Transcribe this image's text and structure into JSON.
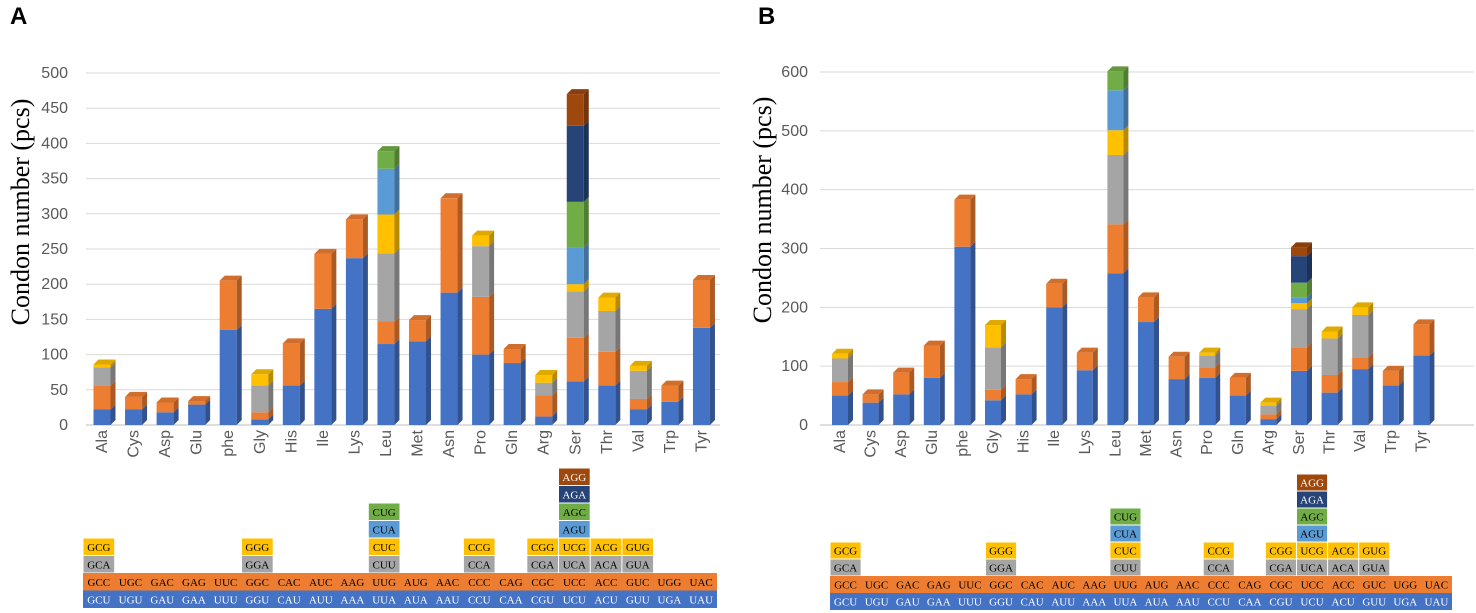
{
  "colors": {
    "blue": "#4472C4",
    "orange": "#ED7D31",
    "gray": "#A5A5A5",
    "yellow": "#FFC000",
    "lightblue": "#5B9BD5",
    "green": "#70AD47",
    "navy": "#264478",
    "brown": "#9E480E"
  },
  "codon_table": {
    "codons": {
      "Ala": [
        "GCU",
        "GCC",
        "GCA",
        "GCG"
      ],
      "Cys": [
        "UGU",
        "UGC"
      ],
      "Asp": [
        "GAU",
        "GAC"
      ],
      "Glu": [
        "GAA",
        "GAG"
      ],
      "phe": [
        "UUU",
        "UUC"
      ],
      "Gly": [
        "GGU",
        "GGC",
        "GGA",
        "GGG"
      ],
      "His": [
        "CAU",
        "CAC"
      ],
      "Ile": [
        "AUU",
        "AUC"
      ],
      "Lys": [
        "AAA",
        "AAG"
      ],
      "Leu": [
        "UUA",
        "UUG",
        "CUU",
        "CUC",
        "CUA",
        "CUG"
      ],
      "Met": [
        "AUA",
        "AUG"
      ],
      "Asn": [
        "AAU",
        "AAC"
      ],
      "Pro": [
        "CCU",
        "CCC",
        "CCA",
        "CCG"
      ],
      "Gln": [
        "CAA",
        "CAG"
      ],
      "Arg": [
        "CGU",
        "CGC",
        "CGA",
        "CGG"
      ],
      "Ser": [
        "UCU",
        "UCC",
        "UCA",
        "UCG",
        "AGU",
        "AGC",
        "AGA",
        "AGG"
      ],
      "Thr": [
        "ACU",
        "ACC",
        "ACA",
        "ACG"
      ],
      "Val": [
        "GUU",
        "GUC",
        "GUA",
        "GUG"
      ],
      "Trp": [
        "UGA",
        "UGG"
      ],
      "Tyr": [
        "UAU",
        "UAC"
      ]
    }
  },
  "chart_data": [
    {
      "type": "bar",
      "stacked": true,
      "panel_label": "A",
      "ylabel": "Condon number (pcs)",
      "ylim": [
        0,
        500
      ],
      "yticks": [
        "0",
        "50",
        "100",
        "150",
        "200",
        "250",
        "300",
        "350",
        "400",
        "450",
        "500"
      ],
      "grid": true,
      "categories": [
        "Ala",
        "Cys",
        "Asp",
        "Glu",
        "phe",
        "Gly",
        "His",
        "Ile",
        "Lys",
        "Leu",
        "Met",
        "Asn",
        "Pro",
        "Gln",
        "Arg",
        "Ser",
        "Thr",
        "Val",
        "Trp",
        "Tyr"
      ],
      "stacks": [
        [
          22,
          34,
          26,
          4
        ],
        [
          22,
          18
        ],
        [
          18,
          14
        ],
        [
          29,
          5
        ],
        [
          135,
          70
        ],
        [
          8,
          10,
          38,
          16
        ],
        [
          56,
          60
        ],
        [
          165,
          78
        ],
        [
          237,
          55
        ],
        [
          115,
          32,
          97,
          55,
          65,
          25
        ],
        [
          119,
          30
        ],
        [
          188,
          134
        ],
        [
          100,
          82,
          72,
          15
        ],
        [
          88,
          20
        ],
        [
          12,
          30,
          18,
          11
        ],
        [
          62,
          62,
          66,
          10,
          52,
          65,
          108,
          45
        ],
        [
          56,
          48,
          58,
          19
        ],
        [
          22,
          15,
          40,
          7
        ],
        [
          33,
          23
        ],
        [
          138,
          68
        ]
      ]
    },
    {
      "type": "bar",
      "stacked": true,
      "panel_label": "B",
      "ylabel": "Condon number (pcs)",
      "ylim": [
        0,
        600
      ],
      "yticks": [
        "0",
        "100",
        "200",
        "300",
        "400",
        "500",
        "600"
      ],
      "grid": true,
      "categories": [
        "Ala",
        "Cys",
        "Asp",
        "Glu",
        "phe",
        "Gly",
        "His",
        "Ile",
        "Lys",
        "Leu",
        "Met",
        "Asn",
        "Pro",
        "Gln",
        "Arg",
        "Ser",
        "Thr",
        "Val",
        "Trp",
        "Tyr"
      ],
      "stacks": [
        [
          50,
          23,
          40,
          8
        ],
        [
          38,
          14
        ],
        [
          52,
          37
        ],
        [
          80,
          55
        ],
        [
          303,
          80
        ],
        [
          42,
          18,
          72,
          38
        ],
        [
          52,
          26
        ],
        [
          200,
          40
        ],
        [
          93,
          30
        ],
        [
          258,
          83,
          118,
          42,
          68,
          32
        ],
        [
          175,
          42
        ],
        [
          78,
          38
        ],
        [
          80,
          18,
          20,
          5
        ],
        [
          50,
          30
        ],
        [
          10,
          8,
          15,
          5
        ],
        [
          92,
          40,
          65,
          10,
          10,
          25,
          45,
          15
        ],
        [
          55,
          30,
          62,
          12
        ],
        [
          95,
          20,
          72,
          13
        ],
        [
          67,
          25
        ],
        [
          118,
          53
        ]
      ]
    }
  ]
}
